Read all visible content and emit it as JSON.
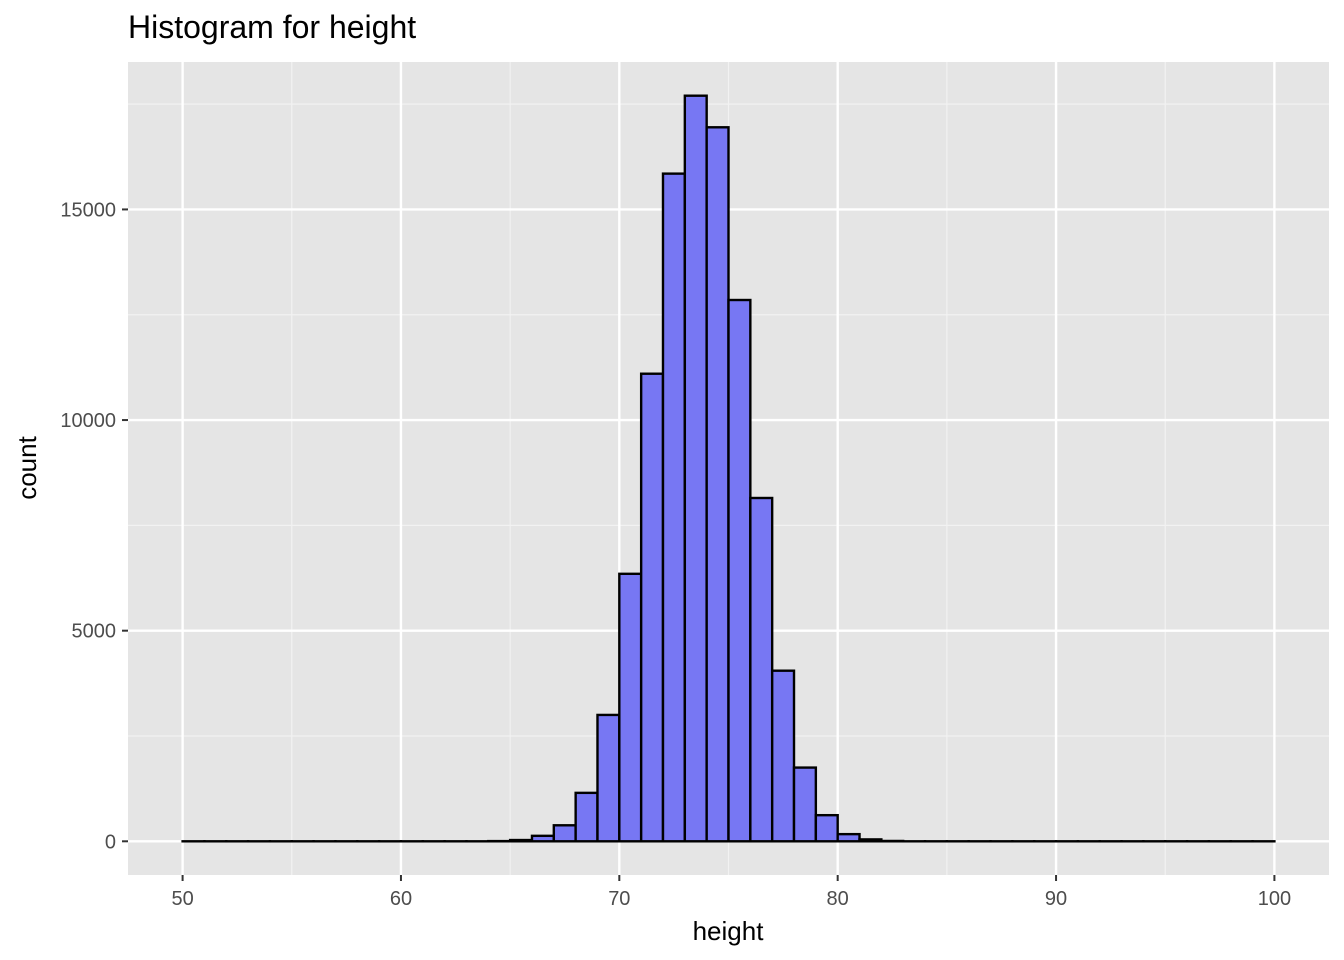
{
  "chart_data": {
    "type": "bar",
    "subtype": "histogram",
    "title": "Histogram for height",
    "xlabel": "height",
    "ylabel": "count",
    "xlim": [
      47.5,
      102.5
    ],
    "ylim": [
      -800,
      18500
    ],
    "x_ticks": [
      50,
      60,
      70,
      80,
      90,
      100
    ],
    "y_ticks": [
      0,
      5000,
      10000,
      15000
    ],
    "x_tick_labels": [
      "50",
      "60",
      "70",
      "80",
      "90",
      "100"
    ],
    "y_tick_labels": [
      "0",
      "5000",
      "10000",
      "15000"
    ],
    "grid": true,
    "fill_color": "#7777f3",
    "outline_color": "#000000",
    "panel_background": "#e5e5e5",
    "bin_width": 1,
    "bins": [
      {
        "x_start": 50,
        "count": 0
      },
      {
        "x_start": 51,
        "count": 0
      },
      {
        "x_start": 52,
        "count": 0
      },
      {
        "x_start": 53,
        "count": 0
      },
      {
        "x_start": 54,
        "count": 0
      },
      {
        "x_start": 55,
        "count": 0
      },
      {
        "x_start": 56,
        "count": 0
      },
      {
        "x_start": 57,
        "count": 0
      },
      {
        "x_start": 58,
        "count": 0
      },
      {
        "x_start": 59,
        "count": 0
      },
      {
        "x_start": 60,
        "count": 0
      },
      {
        "x_start": 61,
        "count": 0
      },
      {
        "x_start": 62,
        "count": 0
      },
      {
        "x_start": 63,
        "count": 0
      },
      {
        "x_start": 64,
        "count": 5
      },
      {
        "x_start": 65,
        "count": 30
      },
      {
        "x_start": 66,
        "count": 130
      },
      {
        "x_start": 67,
        "count": 380
      },
      {
        "x_start": 68,
        "count": 1150
      },
      {
        "x_start": 69,
        "count": 3000
      },
      {
        "x_start": 70,
        "count": 6350
      },
      {
        "x_start": 71,
        "count": 11100
      },
      {
        "x_start": 72,
        "count": 15850
      },
      {
        "x_start": 73,
        "count": 17700
      },
      {
        "x_start": 74,
        "count": 16950
      },
      {
        "x_start": 75,
        "count": 12850
      },
      {
        "x_start": 76,
        "count": 8150
      },
      {
        "x_start": 77,
        "count": 4050
      },
      {
        "x_start": 78,
        "count": 1750
      },
      {
        "x_start": 79,
        "count": 620
      },
      {
        "x_start": 80,
        "count": 170
      },
      {
        "x_start": 81,
        "count": 45
      },
      {
        "x_start": 82,
        "count": 8
      },
      {
        "x_start": 83,
        "count": 0
      },
      {
        "x_start": 84,
        "count": 0
      },
      {
        "x_start": 85,
        "count": 0
      },
      {
        "x_start": 86,
        "count": 0
      },
      {
        "x_start": 87,
        "count": 0
      },
      {
        "x_start": 88,
        "count": 0
      },
      {
        "x_start": 89,
        "count": 0
      },
      {
        "x_start": 90,
        "count": 0
      },
      {
        "x_start": 91,
        "count": 0
      },
      {
        "x_start": 92,
        "count": 0
      },
      {
        "x_start": 93,
        "count": 0
      },
      {
        "x_start": 94,
        "count": 0
      },
      {
        "x_start": 95,
        "count": 0
      },
      {
        "x_start": 96,
        "count": 0
      },
      {
        "x_start": 97,
        "count": 0
      },
      {
        "x_start": 98,
        "count": 0
      },
      {
        "x_start": 99,
        "count": 0
      }
    ]
  }
}
